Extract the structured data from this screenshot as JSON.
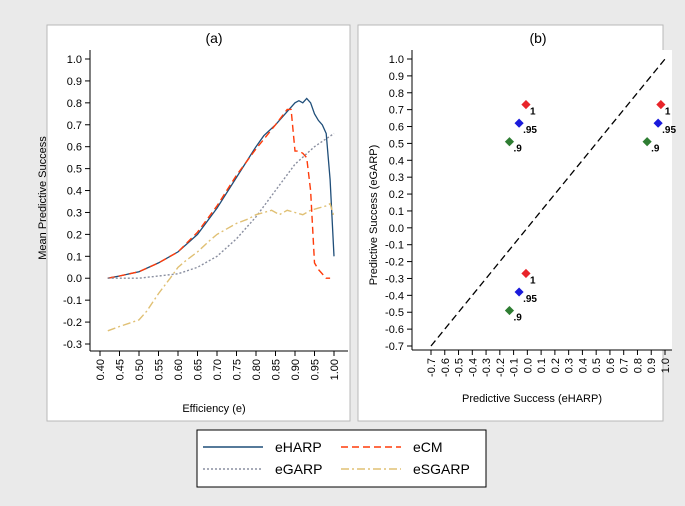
{
  "chart_data": [
    {
      "type": "line",
      "title": "(a)",
      "xlabel": "Efficiency (e)",
      "ylabel": "Mean Predictive Success",
      "xlim": [
        0.4,
        1.0
      ],
      "ylim": [
        -0.3,
        1.0
      ],
      "xticks": [
        "0.40",
        "0.45",
        "0.50",
        "0.55",
        "0.60",
        "0.65",
        "0.70",
        "0.75",
        "0.80",
        "0.85",
        "0.90",
        "0.95",
        "1.00"
      ],
      "yticks": [
        "1.0",
        "0.9",
        "0.8",
        "0.7",
        "0.6",
        "0.5",
        "0.4",
        "0.3",
        "0.2",
        "0.1",
        "0.0",
        "-0.1",
        "-0.2",
        "-0.3"
      ],
      "grid": false,
      "series": [
        {
          "name": "eHARP",
          "color": "#1f4e79",
          "style": "solid",
          "x": [
            0.42,
            0.45,
            0.5,
            0.55,
            0.6,
            0.65,
            0.7,
            0.75,
            0.8,
            0.82,
            0.85,
            0.88,
            0.9,
            0.91,
            0.92,
            0.93,
            0.94,
            0.95,
            0.96,
            0.97,
            0.98,
            0.99,
            1.0
          ],
          "y": [
            0.0,
            0.01,
            0.03,
            0.07,
            0.12,
            0.2,
            0.32,
            0.46,
            0.6,
            0.65,
            0.7,
            0.76,
            0.8,
            0.81,
            0.8,
            0.82,
            0.8,
            0.75,
            0.72,
            0.7,
            0.66,
            0.45,
            0.1
          ]
        },
        {
          "name": "eCM",
          "color": "#ff3b0a",
          "style": "dashed",
          "x": [
            0.42,
            0.45,
            0.5,
            0.55,
            0.6,
            0.65,
            0.7,
            0.75,
            0.8,
            0.85,
            0.88,
            0.89,
            0.9,
            0.91,
            0.92,
            0.93,
            0.94,
            0.95,
            0.96,
            0.98,
            0.99
          ],
          "y": [
            0.0,
            0.01,
            0.03,
            0.07,
            0.12,
            0.21,
            0.33,
            0.47,
            0.59,
            0.7,
            0.77,
            0.77,
            0.58,
            0.58,
            0.57,
            0.55,
            0.4,
            0.07,
            0.04,
            0.0,
            0.0
          ]
        },
        {
          "name": "eGARP",
          "color": "#8a8fa0",
          "style": "dotted",
          "x": [
            0.42,
            0.45,
            0.5,
            0.55,
            0.6,
            0.65,
            0.7,
            0.75,
            0.8,
            0.85,
            0.9,
            0.95,
            1.0
          ],
          "y": [
            0.0,
            0.0,
            0.0,
            0.01,
            0.02,
            0.05,
            0.1,
            0.18,
            0.28,
            0.4,
            0.52,
            0.6,
            0.66
          ]
        },
        {
          "name": "eSGARP",
          "color": "#e0c074",
          "style": "dashdot",
          "x": [
            0.42,
            0.45,
            0.5,
            0.52,
            0.55,
            0.58,
            0.6,
            0.62,
            0.65,
            0.68,
            0.7,
            0.72,
            0.75,
            0.78,
            0.8,
            0.82,
            0.84,
            0.86,
            0.88,
            0.9,
            0.92,
            0.94,
            0.96,
            0.98,
            0.99,
            1.0
          ],
          "y": [
            -0.24,
            -0.22,
            -0.19,
            -0.15,
            -0.07,
            0.0,
            0.05,
            0.08,
            0.12,
            0.17,
            0.2,
            0.22,
            0.25,
            0.27,
            0.29,
            0.3,
            0.31,
            0.29,
            0.31,
            0.3,
            0.29,
            0.31,
            0.32,
            0.33,
            0.34,
            0.28
          ]
        }
      ]
    },
    {
      "type": "scatter",
      "title": "(b)",
      "xlabel": "Predictive Success (eHARP)",
      "ylabel": "Predictive Success (eGARP)",
      "xlim": [
        -0.7,
        1.0
      ],
      "ylim": [
        -0.7,
        1.0
      ],
      "xticks": [
        "-0.7",
        "-0.6",
        "-0.5",
        "-0.4",
        "-0.3",
        "-0.2",
        "-0.1",
        "0.0",
        "0.1",
        "0.2",
        "0.3",
        "0.4",
        "0.5",
        "0.6",
        "0.7",
        "0.8",
        "0.9",
        "1.0"
      ],
      "yticks": [
        "1.0",
        "0.9",
        "0.8",
        "0.7",
        "0.6",
        "0.5",
        "0.4",
        "0.3",
        "0.2",
        "0.1",
        "0.0",
        "-0.1",
        "-0.2",
        "-0.3",
        "-0.4",
        "-0.5",
        "-0.6",
        "-0.7"
      ],
      "diagonal": {
        "from": [
          -0.7,
          -0.7
        ],
        "to": [
          1.0,
          1.0
        ],
        "color": "#000000",
        "style": "dashed"
      },
      "points": [
        {
          "x": -0.01,
          "y": 0.73,
          "label": "1",
          "color": "#e8242a"
        },
        {
          "x": -0.06,
          "y": 0.62,
          "label": ".95",
          "color": "#1a1adb"
        },
        {
          "x": -0.13,
          "y": 0.51,
          "label": ".9",
          "color": "#2e7d32"
        },
        {
          "x": 0.97,
          "y": 0.73,
          "label": "1",
          "color": "#e8242a"
        },
        {
          "x": 0.95,
          "y": 0.62,
          "label": ".95",
          "color": "#1a1adb"
        },
        {
          "x": 0.87,
          "y": 0.51,
          "label": ".9",
          "color": "#2e7d32"
        },
        {
          "x": -0.01,
          "y": -0.27,
          "label": "1",
          "color": "#e8242a"
        },
        {
          "x": -0.06,
          "y": -0.38,
          "label": ".95",
          "color": "#1a1adb"
        },
        {
          "x": -0.13,
          "y": -0.49,
          "label": ".9",
          "color": "#2e7d32"
        }
      ]
    }
  ],
  "legend": {
    "position": "bottom",
    "items": [
      {
        "name": "eHARP",
        "color": "#1f4e79",
        "style": "solid"
      },
      {
        "name": "eCM",
        "color": "#ff3b0a",
        "style": "dashed"
      },
      {
        "name": "eGARP",
        "color": "#8a8fa0",
        "style": "dotted"
      },
      {
        "name": "eSGARP",
        "color": "#e0c074",
        "style": "dashdot"
      }
    ]
  }
}
